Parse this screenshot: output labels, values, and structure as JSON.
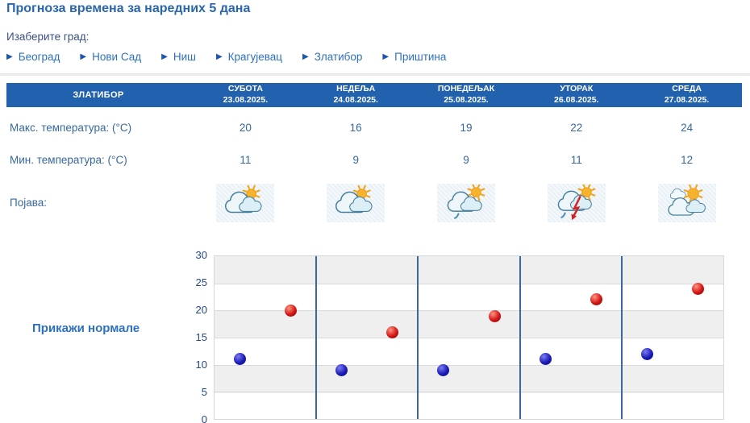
{
  "page": {
    "title": "Прогноза времена за наредних 5 дана",
    "choose_city_label": "Изаберите град:"
  },
  "cities": [
    {
      "label": "Београд"
    },
    {
      "label": "Нови Сад"
    },
    {
      "label": "Ниш"
    },
    {
      "label": "Крагујевац"
    },
    {
      "label": "Златибор"
    },
    {
      "label": "Приштина"
    }
  ],
  "forecast_table": {
    "station": "ЗЛАТИБОР",
    "row_labels": {
      "max_temp": "Макс. температура: (°C)",
      "min_temp": "Мин. температура: (°C)",
      "phenomenon": "Појава:"
    },
    "days": [
      {
        "name": "СУБОТА",
        "date": "23.08.2025.",
        "max": "20",
        "min": "11",
        "icon": "cloudy-with-sun-icon"
      },
      {
        "name": "НЕДЕЉА",
        "date": "24.08.2025.",
        "max": "16",
        "min": "9",
        "icon": "cloudy-with-sun-icon"
      },
      {
        "name": "ПОНЕДЕЉАК",
        "date": "25.08.2025.",
        "max": "19",
        "min": "9",
        "icon": "light-rain-sun-icon"
      },
      {
        "name": "УТОРАК",
        "date": "26.08.2025.",
        "max": "22",
        "min": "11",
        "icon": "thunderstorm-sun-icon"
      },
      {
        "name": "СРЕДА",
        "date": "27.08.2025.",
        "max": "24",
        "min": "12",
        "icon": "sun-with-clouds-icon"
      }
    ]
  },
  "show_normals_label": "Прикажи нормале",
  "chart_data": {
    "type": "scatter",
    "categories": [
      "СУБОТА 23.08.2025.",
      "НЕДЕЉА 24.08.2025.",
      "ПОНЕДЕЉАК 25.08.2025.",
      "УТОРАК 26.08.2025.",
      "СРЕДА 27.08.2025."
    ],
    "series": [
      {
        "name": "Макс. температура (°C)",
        "key": "max",
        "color": "#d31414",
        "values": [
          20,
          16,
          19,
          22,
          24
        ]
      },
      {
        "name": "Мин. температура (°C)",
        "key": "min",
        "color": "#1a1ab8",
        "values": [
          11,
          9,
          9,
          11,
          12
        ]
      }
    ],
    "ylim": [
      0,
      30
    ],
    "yticks": [
      0,
      5,
      10,
      15,
      20,
      25,
      30
    ],
    "xlabel": "",
    "ylabel": "",
    "legend": "none",
    "grid": "horizontal gridlines every 5, alternating gray/white bands, blue vertical day separators"
  },
  "colors": {
    "header_bar": "#2161ae",
    "link_blue": "#2e70c0",
    "arrow_blue": "#1d55b0",
    "text_blue": "#36689f",
    "title_blue": "#2a66ae",
    "band_gray": "#efefef",
    "day_separator": "#3a679c",
    "dot_max": "#d31414",
    "dot_min": "#1a1ab8",
    "icon_cell_bg": "#e9f1f7"
  }
}
